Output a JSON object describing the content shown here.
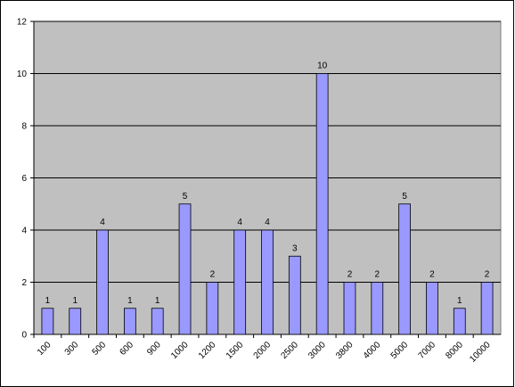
{
  "chart_data": {
    "type": "bar",
    "categories": [
      "100",
      "300",
      "500",
      "600",
      "900",
      "1000",
      "1200",
      "1500",
      "2000",
      "2500",
      "3000",
      "3800",
      "4000",
      "5000",
      "7000",
      "8000",
      "10000"
    ],
    "values": [
      1,
      1,
      4,
      1,
      1,
      5,
      2,
      4,
      4,
      3,
      10,
      2,
      2,
      5,
      2,
      1,
      2
    ],
    "color": "#9999ff",
    "ylim": [
      0,
      12
    ],
    "yticks": [
      0,
      2,
      4,
      6,
      8,
      10,
      12
    ],
    "grid": true,
    "data_labels": true
  }
}
